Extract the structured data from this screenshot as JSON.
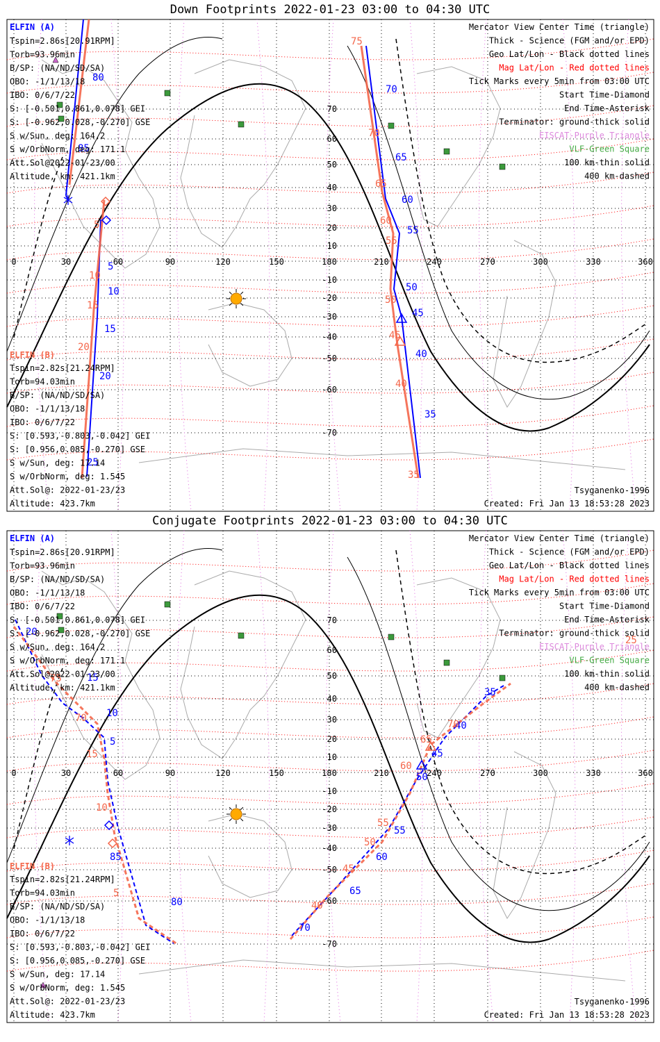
{
  "panels": [
    {
      "title": "Down Footprints 2022-01-23 03:00 to 04:30 UTC",
      "elfin_a_title": "ELFIN (A)",
      "elfin_a_lines": [
        "Tspin=2.86s[20.91RPM]",
        "Torb=93.96min",
        "B/SP: (NA/ND/SD/SA)",
        "OBO: -1/1/13/18",
        "IBO: 0/6/7/22",
        "S: [-0.501,0.861,0.078] GEI",
        "S: [-0.962,0.028,-0.270] GSE",
        "S w/Sun, deg: 164.2",
        "S w/OrbNorm, deg: 171.1",
        "Att.Sol@2022-01-23/00",
        "Altitude, km: 421.1km"
      ],
      "elfin_b_title": "ELFIN (B)",
      "elfin_b_lines": [
        "Tspin=2.82s[21.24RPM]",
        "Torb=94.03min",
        "B/SP: (NA/ND/SD/SA)",
        "OBO: -1/1/13/18",
        "IBO: 0/6/7/22",
        "S: [0.593,-0.803,-0.042] GEI",
        "S: [0.956,0.085,-0.270] GSE",
        "S w/Sun, deg: 17.14",
        "S w/OrbNorm, deg: 1.545",
        "Att.Sol@: 2022-01-23/23",
        "Altitude: 423.7km"
      ],
      "bottom_right_1": "Tsyganenko-1996",
      "bottom_right_2": "Created: Fri Jan 13 18:53:28 2023",
      "lon_ticks": [
        "0",
        "30",
        "60",
        "90",
        "120",
        "150",
        "180",
        "210",
        "240",
        "270",
        "300",
        "330",
        "360"
      ],
      "lat_ticks": [
        "70",
        "60",
        "50",
        "40",
        "30",
        "20",
        "10",
        "-10",
        "-20",
        "-30",
        "-40",
        "-50",
        "-60",
        "-70"
      ],
      "a_labels": [
        "80",
        "85",
        "5",
        "10",
        "15",
        "20",
        "25",
        "70",
        "65",
        "60",
        "55",
        "50",
        "45",
        "40",
        "35"
      ],
      "b_labels": [
        "75",
        "5",
        "10",
        "15",
        "20",
        "70",
        "65",
        "60",
        "55",
        "50",
        "45",
        "40",
        "35"
      ]
    },
    {
      "title": "Conjugate Footprints 2022-01-23 03:00 to 04:30 UTC",
      "elfin_a_title": "ELFIN (A)",
      "elfin_a_lines": [
        "Tspin=2.86s[20.91RPM]",
        "Torb=93.96min",
        "B/SP: (NA/ND/SD/SA)",
        "OBO: -1/1/13/18",
        "IBO: 0/6/7/22",
        "S: [-0.501,0.861,0.078] GEI",
        "S: [-0.962,0.028,-0.270] GSE",
        "S w/Sun, deg: 164.2",
        "S w/OrbNorm, deg: 171.1",
        "Att.Sol@2022-01-23/00",
        "Altitude, km: 421.1km"
      ],
      "elfin_b_title": "ELFIN (B)",
      "elfin_b_lines": [
        "Tspin=2.82s[21.24RPM]",
        "Torb=94.03min",
        "B/SP: (NA/ND/SD/SA)",
        "OBO: -1/1/13/18",
        "IBO: 0/6/7/22",
        "S: [0.593,-0.803,-0.042] GEI",
        "S: [0.956,0.085,-0.270] GSE",
        "S w/Sun, deg: 17.14",
        "S w/OrbNorm, deg: 1.545",
        "Att.Sol@: 2022-01-23/23",
        "Altitude: 423.7km"
      ],
      "bottom_right_1": "Tsyganenko-1996",
      "bottom_right_2": "Created: Fri Jan 13 18:53:28 2023",
      "lon_ticks": [
        "0",
        "30",
        "60",
        "90",
        "120",
        "150",
        "180",
        "210",
        "240",
        "270",
        "300",
        "330",
        "360"
      ],
      "lat_ticks": [
        "70",
        "60",
        "50",
        "40",
        "30",
        "20",
        "10",
        "-10",
        "-20",
        "-30",
        "-40",
        "-50",
        "-60",
        "-70"
      ],
      "a_labels": [
        "20",
        "15",
        "10",
        "5",
        "85",
        "80",
        "70",
        "65",
        "60",
        "55",
        "50",
        "45",
        "40",
        "35"
      ],
      "b_labels": [
        "75",
        "70",
        "15",
        "10",
        "5",
        "40",
        "45",
        "50",
        "55",
        "60",
        "65",
        "70",
        "25"
      ]
    }
  ],
  "legend": {
    "lines": [
      {
        "text": "Mercator View Center Time (triangle)",
        "color": "#000000"
      },
      {
        "text": "Thick - Science (FGM and/or EPD)",
        "color": "#000000"
      },
      {
        "text": "Geo Lat/Lon - Black dotted lines",
        "color": "#000000"
      },
      {
        "text": "Mag Lat/Lon - Red dotted lines",
        "color": "#ff0000"
      },
      {
        "text": "Tick Marks every 5min from 03:00 UTC",
        "color": "#000000"
      },
      {
        "text": "Start Time-Diamond",
        "color": "#000000"
      },
      {
        "text": "End Time-Asterisk",
        "color": "#000000"
      },
      {
        "text": "Terminator: ground-thick solid",
        "color": "#000000"
      },
      {
        "text": "EISCAT-Purple Triangle",
        "color": "#dd88dd"
      },
      {
        "text": "VLF-Green Square",
        "color": "#44aa44"
      },
      {
        "text": "100 km-thin solid",
        "color": "#000000"
      },
      {
        "text": "400 km-dashed",
        "color": "#000000"
      }
    ]
  },
  "colors": {
    "elfin_a": "#0000ff",
    "elfin_b": "#f4664a",
    "mag_grid": "#ff0000",
    "eiscat": "#cc66cc",
    "vlf": "#3c9a3c",
    "sun": "#ffaa00",
    "coast": "#aaaaaa"
  }
}
